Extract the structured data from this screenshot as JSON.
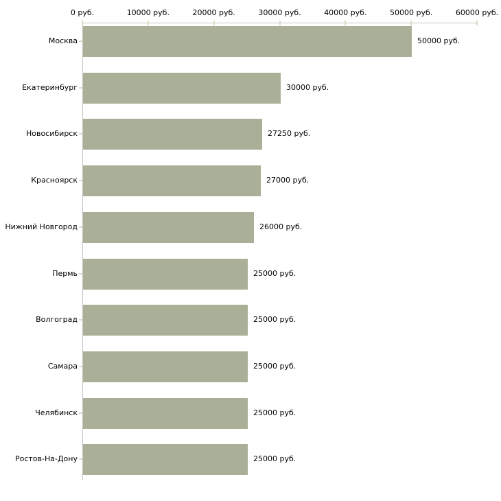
{
  "chart_data": {
    "type": "bar",
    "orientation": "horizontal",
    "title": "",
    "xlabel": "",
    "ylabel": "",
    "xlim": [
      0,
      60000
    ],
    "grid": false,
    "legend": false,
    "bar_color": "#aab097",
    "axis_color": "#c3c3c3",
    "tick_color": "#d9dcc2",
    "text_color": "#000000",
    "x_tick_values": [
      0,
      10000,
      20000,
      30000,
      40000,
      50000,
      60000
    ],
    "x_tick_labels": [
      "0 руб.",
      "10000 руб.",
      "20000 руб.",
      "30000 руб.",
      "40000 руб.",
      "50000 руб.",
      "60000 руб."
    ],
    "categories": [
      "Москва",
      "Екатеринбург",
      "Новосибирск",
      "Красноярск",
      "Нижний Новгород",
      "Пермь",
      "Волгоград",
      "Самара",
      "Челябинск",
      "Ростов-На-Дону"
    ],
    "values": [
      50000,
      30000,
      27250,
      27000,
      26000,
      25000,
      25000,
      25000,
      25000,
      25000
    ],
    "value_labels": [
      "50000 руб.",
      "30000 руб.",
      "27250 руб.",
      "27000 руб.",
      "26000 руб.",
      "25000 руб.",
      "25000 руб.",
      "25000 руб.",
      "25000 руб.",
      "25000 руб."
    ]
  }
}
